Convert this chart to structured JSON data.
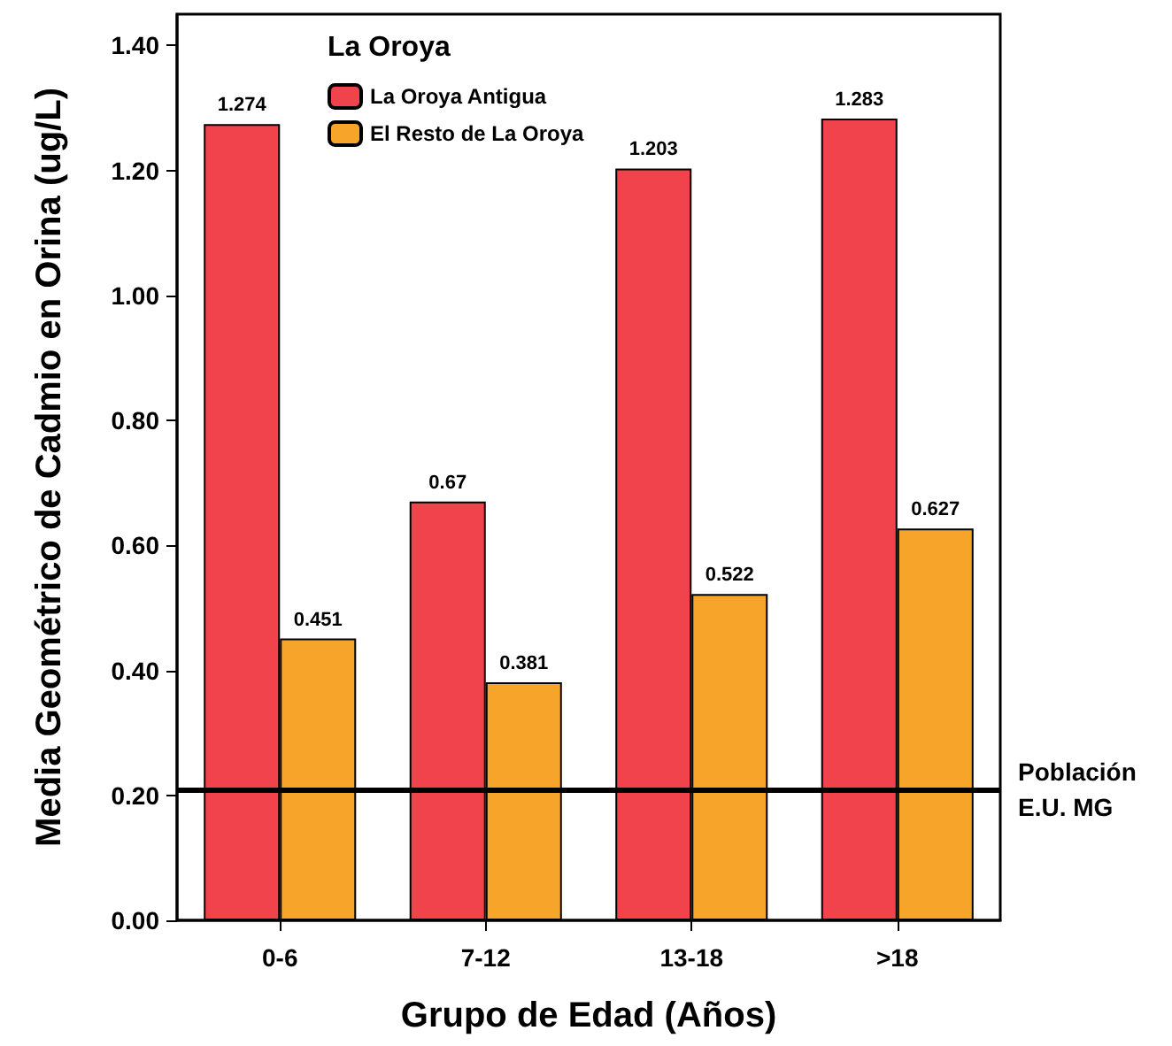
{
  "chart_data": {
    "type": "bar",
    "xlabel": "Grupo de Edad (Años)",
    "ylabel": "Media Geométrico de Cadmio en Orina (ug/L)",
    "legend_title": "La Oroya",
    "categories": [
      "0-6",
      "7-12",
      "13-18",
      ">18"
    ],
    "series": [
      {
        "name": "La Oroya Antigua",
        "color": "#f0434b",
        "values": [
          1.274,
          0.67,
          1.203,
          1.283
        ]
      },
      {
        "name": "El Resto de La Oroya",
        "color": "#f6a52a",
        "values": [
          0.451,
          0.381,
          0.522,
          0.627
        ]
      }
    ],
    "ylim": [
      0,
      1.45
    ],
    "yticks": [
      {
        "value": 0,
        "label": "0.00"
      },
      {
        "value": 0.2,
        "label": "0.20"
      },
      {
        "value": 0.4,
        "label": "0.40"
      },
      {
        "value": 0.6,
        "label": "0.60"
      },
      {
        "value": 0.8,
        "label": "0.80"
      },
      {
        "value": 1,
        "label": "1.00"
      },
      {
        "value": 1.2,
        "label": "1.20"
      },
      {
        "value": 1.4,
        "label": "1.40"
      }
    ],
    "ref_lines": [
      {
        "axis": "y",
        "value": 0.21,
        "label": "Población E.U. MG",
        "color": "#000000"
      }
    ],
    "data_labels": true,
    "grid": false,
    "legend": "top left"
  }
}
